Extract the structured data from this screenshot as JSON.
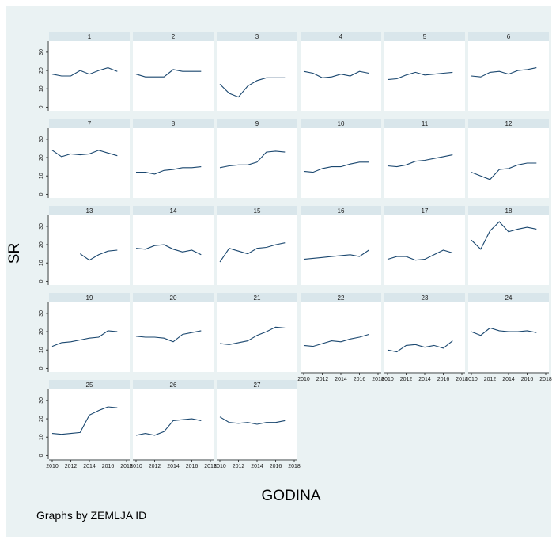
{
  "chart_data": {
    "type": "line",
    "layout": "small-multiples",
    "ylabel": "SR",
    "xlabel": "GODINA",
    "note": "Graphs by ZEMLJA ID",
    "x_ticks": [
      2010,
      2012,
      2014,
      2016,
      2018
    ],
    "y_ticks": [
      0,
      10,
      20,
      30
    ],
    "xlim": [
      2010,
      2018
    ],
    "ylim": [
      -2,
      36
    ],
    "grid": false,
    "line_color": "#1a476f",
    "panel_title_bg": "#d9e6eb",
    "x": [
      2010,
      2011,
      2012,
      2013,
      2014,
      2015,
      2016,
      2017
    ],
    "panels": [
      {
        "name": "1",
        "values": [
          18,
          17,
          17,
          20,
          18,
          20,
          21.5,
          19.5
        ]
      },
      {
        "name": "2",
        "values": [
          18,
          16.5,
          16.5,
          16.5,
          20.5,
          19.5,
          19.5,
          19.5
        ]
      },
      {
        "name": "3",
        "values": [
          12.5,
          7.5,
          5.5,
          11.5,
          14.5,
          16,
          16,
          16
        ]
      },
      {
        "name": "4",
        "values": [
          19.5,
          18.5,
          16,
          16.5,
          18,
          17,
          19.5,
          18.5
        ]
      },
      {
        "name": "5",
        "values": [
          15,
          15.5,
          17.5,
          19,
          17.5,
          18,
          18.5,
          19
        ]
      },
      {
        "name": "6",
        "values": [
          17,
          16.5,
          19,
          19.5,
          18,
          20,
          20.5,
          21.5
        ]
      },
      {
        "name": "7",
        "values": [
          24,
          20.5,
          22,
          21.5,
          22,
          24,
          22.5,
          21
        ]
      },
      {
        "name": "8",
        "values": [
          12,
          12,
          11,
          13,
          13.5,
          14.5,
          14.5,
          15
        ]
      },
      {
        "name": "9",
        "values": [
          14.5,
          15.5,
          16,
          16,
          17.5,
          23,
          23.5,
          23
        ]
      },
      {
        "name": "10",
        "values": [
          12.5,
          12,
          14,
          15,
          15,
          16.5,
          17.5,
          17.5
        ]
      },
      {
        "name": "11",
        "values": [
          15.5,
          15,
          16,
          18,
          18.5,
          19.5,
          20.5,
          21.5
        ]
      },
      {
        "name": "12",
        "values": [
          12,
          10,
          8,
          13.5,
          14,
          16,
          17,
          17
        ]
      },
      {
        "name": "13",
        "values": [
          null,
          null,
          null,
          15,
          11.5,
          14.5,
          16.5,
          17
        ]
      },
      {
        "name": "14",
        "values": [
          18,
          17.5,
          19.5,
          20,
          17.5,
          16,
          17,
          14.5
        ]
      },
      {
        "name": "15",
        "values": [
          10.5,
          18,
          16.5,
          15,
          18,
          18.5,
          20,
          21
        ]
      },
      {
        "name": "16",
        "values": [
          12,
          12.5,
          13,
          13.5,
          14,
          14.5,
          13.5,
          17
        ]
      },
      {
        "name": "17",
        "values": [
          12,
          13.5,
          13.5,
          11.5,
          12,
          14.5,
          17,
          15.5
        ]
      },
      {
        "name": "18",
        "values": [
          22.5,
          17.5,
          27.5,
          32.5,
          27,
          28.5,
          29.5,
          28.5
        ]
      },
      {
        "name": "19",
        "values": [
          12,
          14,
          14.5,
          15.5,
          16.5,
          17,
          20.5,
          20
        ]
      },
      {
        "name": "20",
        "values": [
          17.5,
          17,
          17,
          16.5,
          14.5,
          18.5,
          19.5,
          20.5
        ]
      },
      {
        "name": "21",
        "values": [
          13.5,
          13,
          14,
          15,
          18,
          20,
          22.5,
          22
        ]
      },
      {
        "name": "22",
        "values": [
          12.5,
          12,
          13.5,
          15,
          14.5,
          16,
          17,
          18.5
        ]
      },
      {
        "name": "23",
        "values": [
          10,
          9,
          12.5,
          13,
          11.5,
          12.5,
          11,
          15
        ]
      },
      {
        "name": "24",
        "values": [
          20,
          18,
          22,
          20.5,
          20,
          20,
          20.5,
          19.5
        ]
      },
      {
        "name": "25",
        "values": [
          12,
          11.5,
          12,
          12.5,
          22,
          24.5,
          26.5,
          26
        ]
      },
      {
        "name": "26",
        "values": [
          11,
          12,
          11,
          13,
          19,
          19.5,
          20,
          19
        ]
      },
      {
        "name": "27",
        "values": [
          21,
          18,
          17.5,
          18,
          17,
          18,
          18,
          19
        ]
      }
    ]
  }
}
